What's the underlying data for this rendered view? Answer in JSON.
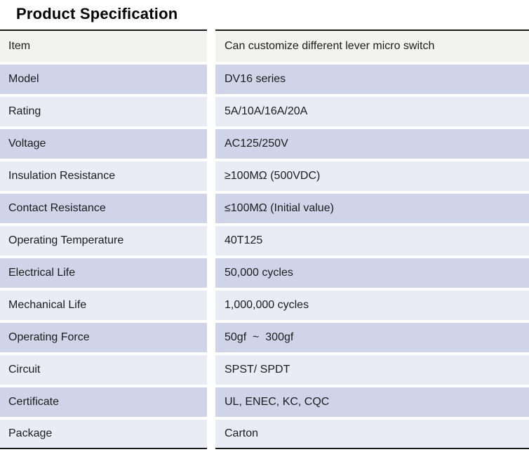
{
  "title": "Product Specification",
  "colors": {
    "header_row_bg": "#f2f2f1",
    "dark_row_bg": "#cfd4e9",
    "light_row_bg": "#e9ebf5",
    "border": "#1a1a1a",
    "text": "#1c1c1c"
  },
  "table": {
    "rows": [
      {
        "label": "Item",
        "value": "Can customize different lever micro switch"
      },
      {
        "label": "Model",
        "value": "DV16 series"
      },
      {
        "label": "Rating",
        "value": "5A/10A/16A/20A"
      },
      {
        "label": "Voltage",
        "value": "AC125/250V"
      },
      {
        "label": "Insulation Resistance",
        "value": "≥100MΩ (500VDC)"
      },
      {
        "label": "Contact Resistance",
        "value": "≤100MΩ (Initial value)"
      },
      {
        "label": "Operating Temperature",
        "value": "40T125"
      },
      {
        "label": "Electrical Life",
        "value": "50,000 cycles"
      },
      {
        "label": "Mechanical Life",
        "value": "1,000,000 cycles"
      },
      {
        "label": "Operating Force",
        "value": "50gf  ~  300gf"
      },
      {
        "label": "Circuit",
        "value": "SPST/ SPDT"
      },
      {
        "label": "Certificate",
        "value": "UL, ENEC, KC, CQC"
      },
      {
        "label": "Package",
        "value": "Carton"
      }
    ]
  }
}
